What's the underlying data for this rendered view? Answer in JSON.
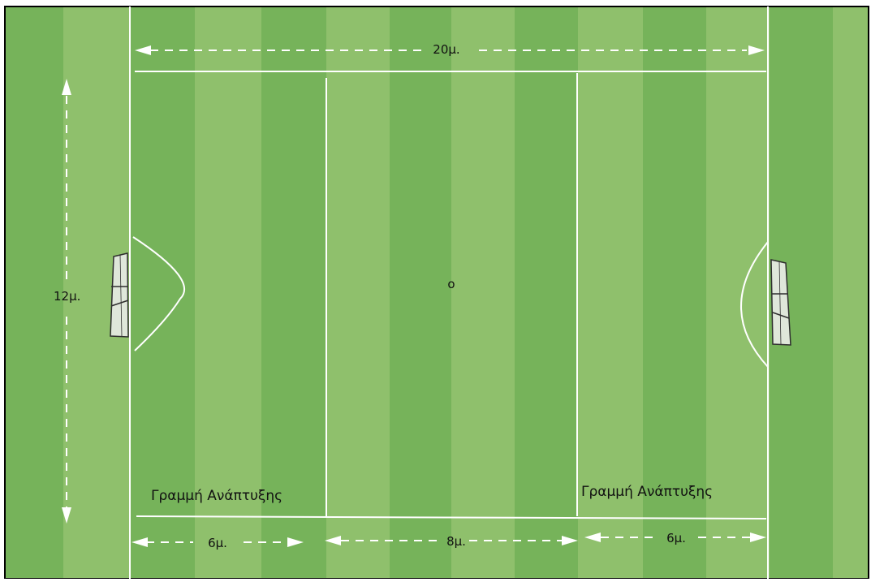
{
  "diagram": {
    "labels": {
      "width_total": "20μ.",
      "height_total": "12μ.",
      "left_zone": "6μ.",
      "middle_zone": "8μ.",
      "right_zone": "6μ.",
      "development_line_left": "Γραμμή Ανάπτυξης",
      "development_line_right": "Γραμμή Ανάπτυξης",
      "center_mark": "o"
    },
    "colors": {
      "grass_light": "#8fc06c",
      "grass_dark": "#76b35a",
      "line": "#ffffff",
      "border": "#000000",
      "goal_fill": "#dfe7da",
      "goal_stroke": "#2e2e2e"
    }
  }
}
